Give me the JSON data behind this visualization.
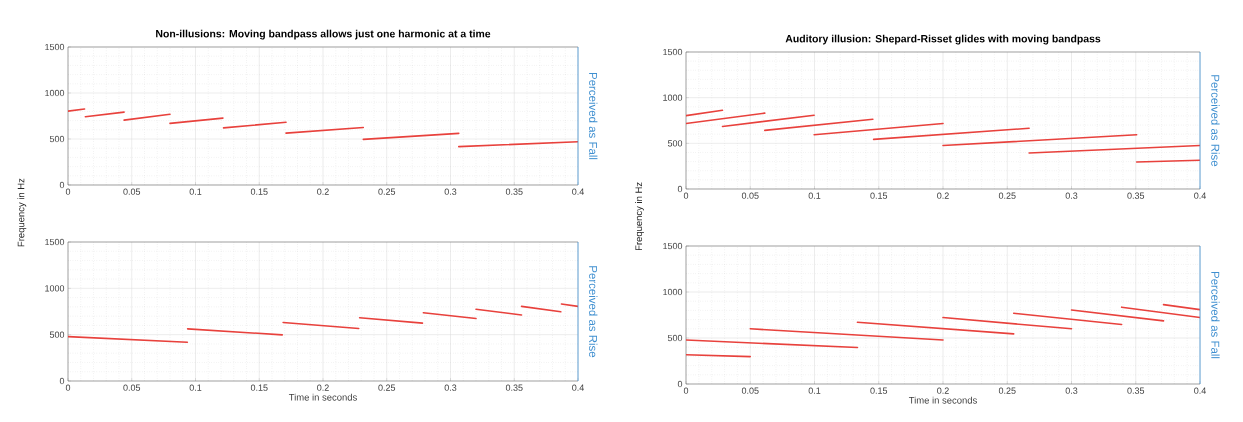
{
  "chart_data": [
    {
      "type": "line",
      "title": "Non-illusions: Moving bandpass allows just one harmonic at a time",
      "ylabel": "Frequency in Hz",
      "y2label": "Perceived as Fall",
      "xlim": [
        0,
        0.4
      ],
      "ylim": [
        0,
        1500
      ],
      "xticks": [
        0,
        0.05,
        0.1,
        0.15,
        0.2,
        0.25,
        0.3,
        0.35,
        0.4
      ],
      "yticks": [
        0,
        500,
        1000,
        1500
      ],
      "grid": true,
      "series": [
        {
          "color": "#e8413c",
          "x": [
            0,
            0.013
          ],
          "values": [
            803,
            826
          ]
        },
        {
          "color": "#e8413c",
          "x": [
            0.0136,
            0.044
          ],
          "values": [
            742,
            792
          ]
        },
        {
          "color": "#e8413c",
          "x": [
            0.044,
            0.08
          ],
          "values": [
            705,
            769
          ]
        },
        {
          "color": "#e8413c",
          "x": [
            0.08,
            0.1215
          ],
          "values": [
            670,
            727
          ]
        },
        {
          "color": "#e8413c",
          "x": [
            0.122,
            0.171
          ],
          "values": [
            621,
            682
          ]
        },
        {
          "color": "#e8413c",
          "x": [
            0.171,
            0.2316
          ],
          "values": [
            564,
            625
          ]
        },
        {
          "color": "#e8413c",
          "x": [
            0.2316,
            0.3065
          ],
          "values": [
            496,
            561
          ]
        },
        {
          "color": "#e8413c",
          "x": [
            0.3065,
            0.4
          ],
          "values": [
            417,
            470
          ]
        }
      ]
    },
    {
      "type": "line",
      "xlabel": "Time in seconds",
      "y2label": "Perceived as Rise",
      "xlim": [
        0,
        0.4
      ],
      "ylim": [
        0,
        1500
      ],
      "xticks": [
        0,
        0.05,
        0.1,
        0.15,
        0.2,
        0.25,
        0.3,
        0.35,
        0.4
      ],
      "yticks": [
        0,
        500,
        1000,
        1500
      ],
      "grid": true,
      "series": [
        {
          "color": "#e8413c",
          "x": [
            0,
            0.0936
          ],
          "values": [
            479,
            418
          ]
        },
        {
          "color": "#e8413c",
          "x": [
            0.0938,
            0.168
          ],
          "values": [
            563,
            498
          ]
        },
        {
          "color": "#e8413c",
          "x": [
            0.1687,
            0.228
          ],
          "values": [
            632,
            567
          ]
        },
        {
          "color": "#e8413c",
          "x": [
            0.2287,
            0.278
          ],
          "values": [
            682,
            625
          ]
        },
        {
          "color": "#e8413c",
          "x": [
            0.2787,
            0.32
          ],
          "values": [
            736,
            674
          ]
        },
        {
          "color": "#e8413c",
          "x": [
            0.32,
            0.3557
          ],
          "values": [
            774,
            713
          ]
        },
        {
          "color": "#e8413c",
          "x": [
            0.3557,
            0.3865
          ],
          "values": [
            805,
            747
          ]
        },
        {
          "color": "#e8413c",
          "x": [
            0.387,
            0.4
          ],
          "values": [
            831,
            805
          ]
        }
      ]
    },
    {
      "type": "line",
      "title": "Auditory illusion: Shepard-Risset glides with moving bandpass",
      "ylabel": "Frequency in Hz",
      "y2label": "Perceived as Rise",
      "xlim": [
        0,
        0.4
      ],
      "ylim": [
        0,
        1500
      ],
      "xticks": [
        0,
        0.05,
        0.1,
        0.15,
        0.2,
        0.25,
        0.3,
        0.35,
        0.4
      ],
      "yticks": [
        0,
        500,
        1000,
        1500
      ],
      "grid": true,
      "series": [
        {
          "color": "#e8413c",
          "x": [
            0,
            0.0284
          ],
          "values": [
            803,
            862
          ]
        },
        {
          "color": "#e8413c",
          "x": [
            0,
            0.0613
          ],
          "values": [
            717,
            831
          ]
        },
        {
          "color": "#e8413c",
          "x": [
            0.0284,
            0.0997
          ],
          "values": [
            685,
            807
          ]
        },
        {
          "color": "#e8413c",
          "x": [
            0.0613,
            0.1454
          ],
          "values": [
            642,
            764
          ]
        },
        {
          "color": "#e8413c",
          "x": [
            0.0997,
            0.2
          ],
          "values": [
            594,
            717
          ]
        },
        {
          "color": "#e8413c",
          "x": [
            0.146,
            0.267
          ],
          "values": [
            543,
            665
          ]
        },
        {
          "color": "#e8413c",
          "x": [
            0.2,
            0.3507
          ],
          "values": [
            476,
            594
          ]
        },
        {
          "color": "#e8413c",
          "x": [
            0.267,
            0.4
          ],
          "values": [
            394,
            476
          ]
        },
        {
          "color": "#e8413c",
          "x": [
            0.3507,
            0.4
          ],
          "values": [
            295,
            315
          ]
        }
      ]
    },
    {
      "type": "line",
      "xlabel": "Time in seconds",
      "y2label": "Perceived as Fall",
      "xlim": [
        0,
        0.4
      ],
      "ylim": [
        0,
        1500
      ],
      "xticks": [
        0,
        0.05,
        0.1,
        0.15,
        0.2,
        0.25,
        0.3,
        0.35,
        0.4
      ],
      "yticks": [
        0,
        500,
        1000,
        1500
      ],
      "grid": true,
      "series": [
        {
          "color": "#e8413c",
          "x": [
            0,
            0.05
          ],
          "values": [
            318,
            298
          ]
        },
        {
          "color": "#e8413c",
          "x": [
            0,
            0.1334
          ],
          "values": [
            478,
            396
          ]
        },
        {
          "color": "#e8413c",
          "x": [
            0.05,
            0.2
          ],
          "values": [
            600,
            478
          ]
        },
        {
          "color": "#e8413c",
          "x": [
            0.1334,
            0.255
          ],
          "values": [
            671,
            545
          ]
        },
        {
          "color": "#e8413c",
          "x": [
            0.2,
            0.3
          ],
          "values": [
            722,
            600
          ]
        },
        {
          "color": "#e8413c",
          "x": [
            0.255,
            0.339
          ],
          "values": [
            769,
            647
          ]
        },
        {
          "color": "#e8413c",
          "x": [
            0.3,
            0.3716
          ],
          "values": [
            804,
            686
          ]
        },
        {
          "color": "#e8413c",
          "x": [
            0.339,
            0.4
          ],
          "values": [
            835,
            722
          ]
        },
        {
          "color": "#e8413c",
          "x": [
            0.3716,
            0.4
          ],
          "values": [
            863,
            808
          ]
        }
      ]
    }
  ]
}
